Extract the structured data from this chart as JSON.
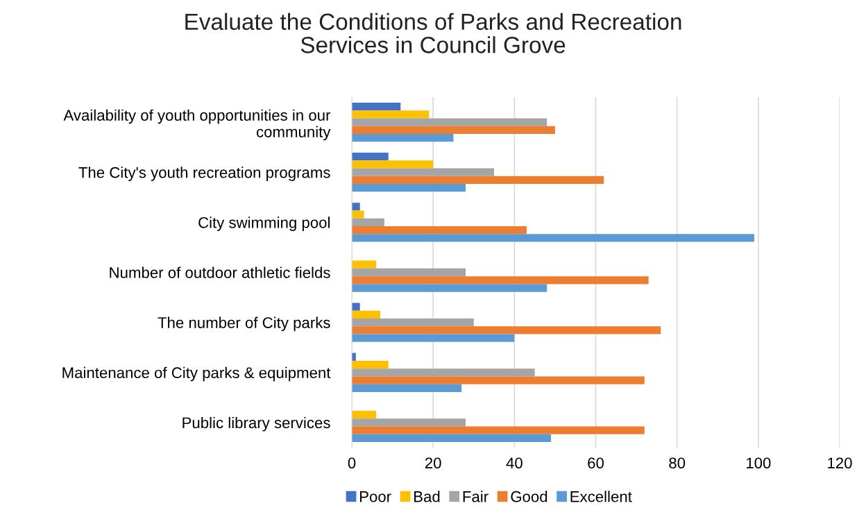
{
  "chart_data": {
    "type": "bar",
    "orientation": "horizontal",
    "title": "Evaluate the Conditions of Parks and Recreation\nServices in Council Grove",
    "categories": [
      "Availability of youth opportunities in our\ncommunity",
      "The City's youth recreation programs",
      "City swimming pool",
      "Number of outdoor athletic fields",
      "The number of City parks",
      "Maintenance of City parks & equipment",
      "Public library services"
    ],
    "series": [
      {
        "name": "Poor",
        "color": "#4472c4",
        "values": [
          12,
          9,
          2,
          0,
          2,
          1,
          0
        ]
      },
      {
        "name": "Bad",
        "color": "#ffc000",
        "values": [
          19,
          20,
          3,
          6,
          7,
          9,
          6
        ]
      },
      {
        "name": "Fair",
        "color": "#a5a5a5",
        "values": [
          48,
          35,
          8,
          28,
          30,
          45,
          28
        ]
      },
      {
        "name": "Good",
        "color": "#ed7d31",
        "values": [
          50,
          62,
          43,
          73,
          76,
          72,
          72
        ]
      },
      {
        "name": "Excellent",
        "color": "#5b9bd5",
        "values": [
          25,
          28,
          99,
          48,
          40,
          27,
          49
        ]
      }
    ],
    "xlim": [
      0,
      120
    ],
    "xticks": [
      0,
      20,
      40,
      60,
      80,
      100,
      120
    ],
    "grid": "x",
    "legend": "bottom"
  }
}
